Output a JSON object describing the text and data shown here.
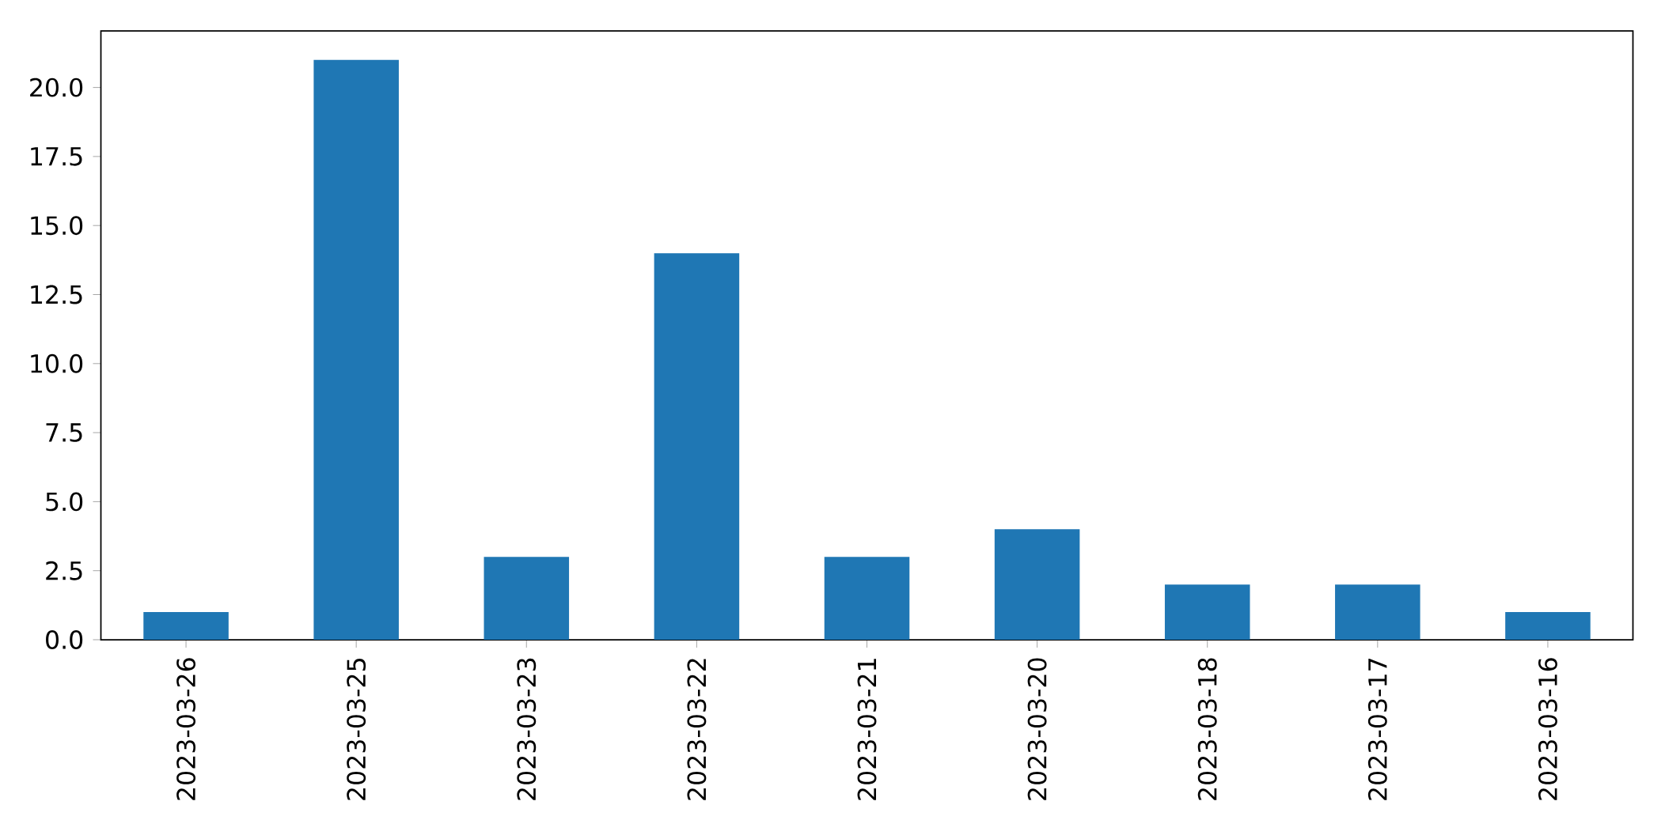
{
  "chart_data": {
    "type": "bar",
    "categories": [
      "2023-03-26",
      "2023-03-25",
      "2023-03-23",
      "2023-03-22",
      "2023-03-21",
      "2023-03-20",
      "2023-03-18",
      "2023-03-17",
      "2023-03-16"
    ],
    "values": [
      1,
      21,
      3,
      14,
      3,
      4,
      2,
      2,
      1
    ],
    "color": "#1f77b4",
    "ylim": [
      0,
      22.05
    ],
    "yticks": [
      {
        "value": 0,
        "label": "0.0"
      },
      2.5,
      {
        "value": 5,
        "label": "5.0"
      },
      7.5,
      {
        "value": 10,
        "label": "10.0"
      },
      12.5,
      {
        "value": 15,
        "label": "15.0"
      },
      17.5,
      {
        "value": 20,
        "label": "20.0"
      }
    ],
    "grid": false
  }
}
